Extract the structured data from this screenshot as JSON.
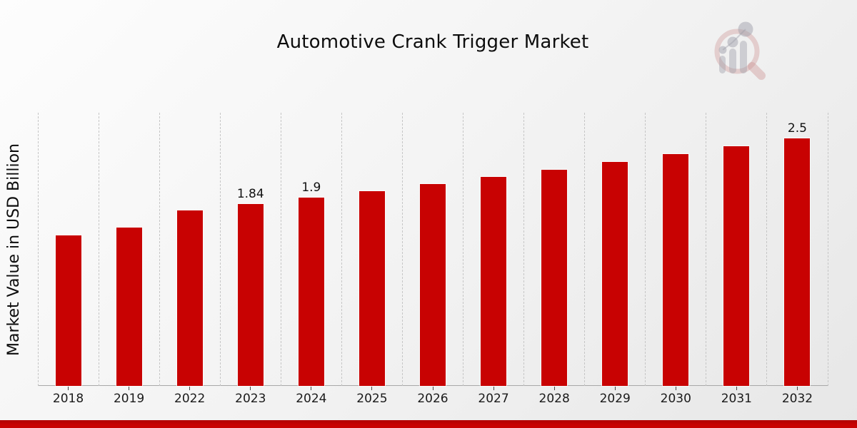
{
  "title": "Automotive Crank Trigger Market",
  "y_axis_label": "Market Value in USD Billion",
  "watermark": {
    "name": "market-research-future-logo",
    "ring_color": "#d9a8a8",
    "bars_color": "#b9b9c2"
  },
  "footer": {
    "bar_color_top": "#b00303",
    "bar_color_bottom": "#c80202"
  },
  "colors": {
    "bar": "#c80202",
    "background_start": "#fdfdfd",
    "background_end": "#e7e7e7",
    "gridline": "#c6c6c6",
    "axis_line": "#a8a8a8",
    "text": "#0d0d0d"
  },
  "chart_data": {
    "type": "bar",
    "title": "Automotive Crank Trigger Market",
    "xlabel": "",
    "ylabel": "Market Value in USD Billion",
    "categories": [
      "2018",
      "2019",
      "2022",
      "2023",
      "2024",
      "2025",
      "2026",
      "2027",
      "2028",
      "2029",
      "2030",
      "2031",
      "2032"
    ],
    "values": [
      1.52,
      1.6,
      1.77,
      1.84,
      1.9,
      1.97,
      2.04,
      2.11,
      2.18,
      2.26,
      2.34,
      2.42,
      2.5
    ],
    "data_labels": [
      "",
      "",
      "",
      "1.84",
      "1.9",
      "",
      "",
      "",
      "",
      "",
      "",
      "",
      "2.5"
    ],
    "bar_color": "#c80202",
    "ylim": [
      0,
      2.76
    ],
    "grid": "vertical-dashed-category-boundaries",
    "legend": "none"
  }
}
